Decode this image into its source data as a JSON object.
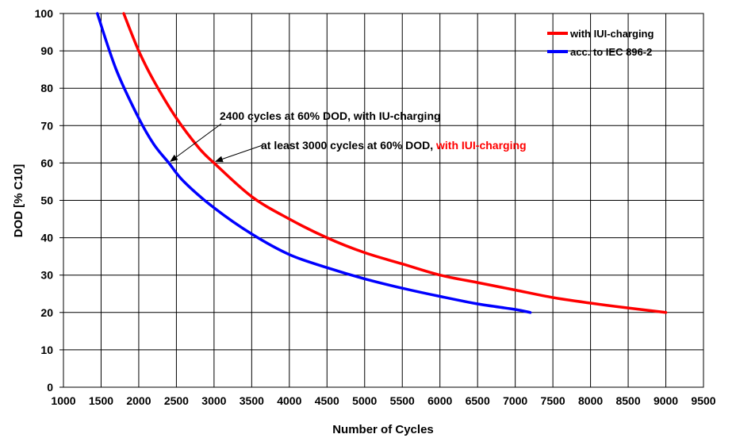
{
  "chart_data": {
    "type": "line",
    "title": "",
    "xlabel": "Number of Cycles",
    "ylabel": "DOD [% C10]",
    "xlim": [
      1000,
      9500
    ],
    "ylim": [
      0,
      100
    ],
    "xticks": [
      1000,
      1500,
      2000,
      2500,
      3000,
      3500,
      4000,
      4500,
      5000,
      5500,
      6000,
      6500,
      7000,
      7500,
      8000,
      8500,
      9000,
      9500
    ],
    "yticks": [
      0,
      10,
      20,
      30,
      40,
      50,
      60,
      70,
      80,
      90,
      100
    ],
    "grid": true,
    "legend_position": "top-right",
    "series": [
      {
        "name": "with IUI-charging",
        "color": "#ff0000",
        "x": [
          1800,
          2000,
          2200,
          2500,
          2800,
          3000,
          3500,
          4000,
          4500,
          5000,
          5500,
          6000,
          6500,
          7000,
          7500,
          8000,
          8500,
          9000
        ],
        "y": [
          100,
          90,
          82,
          72,
          64,
          60,
          51,
          45,
          40,
          36,
          33,
          30,
          28,
          26,
          24,
          22.5,
          21.2,
          20
        ]
      },
      {
        "name": "acc. to IEC 896-2",
        "color": "#0000ff",
        "x": [
          1450,
          1700,
          2000,
          2200,
          2400,
          2600,
          3000,
          3500,
          4000,
          4500,
          5000,
          5500,
          6000,
          6500,
          7000,
          7200
        ],
        "y": [
          100,
          85,
          72,
          65,
          60,
          55,
          48,
          41,
          35.5,
          32,
          29,
          26.5,
          24.3,
          22.3,
          20.8,
          20
        ]
      }
    ],
    "annotations": [
      {
        "parts": [
          {
            "text": "2400 cycles at 60% DOD, with IU-charging",
            "color": "#000000"
          }
        ],
        "target": [
          2400,
          60
        ]
      },
      {
        "parts": [
          {
            "text": "at least 3000 cycles at 60% DOD, ",
            "color": "#000000"
          },
          {
            "text": "with IUI-charging",
            "color": "#ff0000"
          }
        ],
        "target": [
          3000,
          60
        ]
      }
    ]
  }
}
